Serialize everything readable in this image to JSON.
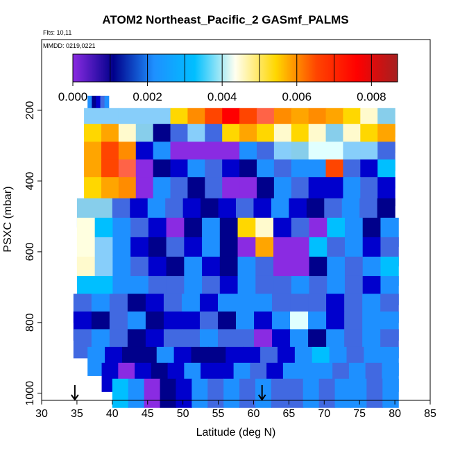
{
  "chart_data": {
    "type": "heatmap",
    "title": "ATOM2 Northeast_Pacific_2 GASmf_PALMS",
    "annotations": [
      "Flts: 10,11",
      "MMDD: 0219,0221"
    ],
    "xlabel": "Latitude (deg N)",
    "ylabel": "PSXC (mbar)",
    "xlim": [
      30,
      85
    ],
    "ylim": [
      1020,
      0
    ],
    "xticks": [
      30,
      35,
      40,
      45,
      50,
      55,
      60,
      65,
      70,
      75,
      80,
      85
    ],
    "yticks": [
      200,
      400,
      600,
      800,
      1000
    ],
    "colorbar": {
      "range": [
        0,
        0.0087
      ],
      "tick_values": [
        0,
        0.002,
        0.004,
        0.006,
        0.008
      ],
      "tick_labels": [
        "0.000",
        "0.002",
        "0.004",
        "0.006",
        "0.008"
      ],
      "stops": [
        "#8a2be2",
        "#00008b",
        "#1e90ff",
        "#00bfff",
        "#fffff0",
        "#ffd700",
        "#ff4500",
        "#ff0000",
        "#a52020"
      ]
    },
    "arrows_latitude": [
      34.7,
      61.2
    ],
    "rows": [
      {
        "p": 200,
        "x0": 36.5,
        "x1": 39.5,
        "colors": [
          "#1e90ff",
          "#00008b",
          "#0000cd",
          "#4169e1",
          "#1e90ff"
        ]
      },
      {
        "p": 235,
        "x0": 36,
        "x1": 80,
        "colors": [
          "#87cefa",
          "#87cefa",
          "#87cefa",
          "#87cefa",
          "#87cefa",
          "#ffd700",
          "#ff8c00",
          "#ff4500",
          "#ff0000",
          "#ff4500",
          "#ff6347",
          "#ff8c00",
          "#ffa500",
          "#ff8c00",
          "#ffa500",
          "#ffd700",
          "#fffacd",
          "#87ceeb"
        ]
      },
      {
        "p": 280,
        "x0": 36,
        "x1": 80,
        "colors": [
          "#ffd700",
          "#ffa500",
          "#fffacd",
          "#87ceeb",
          "#00008b",
          "#4169e1",
          "#87cefa",
          "#4169e1",
          "#ffd700",
          "#ffa500",
          "#ffd700",
          "#fffacd",
          "#ffd700",
          "#fffacd",
          "#87ceeb",
          "#fffacd",
          "#ffd700",
          "#ffa500"
        ]
      },
      {
        "p": 330,
        "x0": 36,
        "x1": 80,
        "colors": [
          "#ffa500",
          "#ff4500",
          "#ff8c00",
          "#0000cd",
          "#1e90ff",
          "#8a2be2",
          "#8a2be2",
          "#8a2be2",
          "#8a2be2",
          "#1e90ff",
          "#4169e1",
          "#87cefa",
          "#87ceeb",
          "#e0ffff",
          "#e0ffff",
          "#87cefa",
          "#87cefa",
          "#4169e1"
        ]
      },
      {
        "p": 380,
        "x0": 36,
        "x1": 80,
        "colors": [
          "#ffa500",
          "#ff4500",
          "#ff6347",
          "#8a2be2",
          "#00008b",
          "#0000cd",
          "#1e90ff",
          "#4169e1",
          "#0000cd",
          "#00008b",
          "#1e90ff",
          "#4169e1",
          "#1e90ff",
          "#1e90ff",
          "#ff4500",
          "#4169e1",
          "#0000cd",
          "#00bfff"
        ]
      },
      {
        "p": 430,
        "x0": 36,
        "x1": 80,
        "colors": [
          "#ffd700",
          "#ffa500",
          "#ff8c00",
          "#8a2be2",
          "#1e90ff",
          "#4169e1",
          "#00008b",
          "#4169e1",
          "#8a2be2",
          "#8a2be2",
          "#00008b",
          "#1e90ff",
          "#4169e1",
          "#0000cd",
          "#0000cd",
          "#1e90ff",
          "#4169e1",
          "#0000cd"
        ]
      },
      {
        "p": 490,
        "x0": 35,
        "x1": 80,
        "colors": [
          "#87ceeb",
          "#87ceeb",
          "#4169e1",
          "#0000cd",
          "#1e90ff",
          "#4169e1",
          "#0000cd",
          "#00008b",
          "#0000cd",
          "#4169e1",
          "#0000cd",
          "#1e90ff",
          "#0000cd",
          "#00008b",
          "#4169e1",
          "#1e90ff",
          "#4169e1",
          "#00008b"
        ]
      },
      {
        "p": 545,
        "x0": 35,
        "x1": 80.5,
        "colors": [
          "#ffffe0",
          "#00bfff",
          "#1e90ff",
          "#4169e1",
          "#0000cd",
          "#8a2be2",
          "#00008b",
          "#1e90ff",
          "#00008b",
          "#ffd700",
          "#fffacd",
          "#0000cd",
          "#4169e1",
          "#8a2be2",
          "#00bfff",
          "#1e90ff",
          "#00008b",
          "#1e90ff"
        ]
      },
      {
        "p": 600,
        "x0": 35,
        "x1": 80.5,
        "colors": [
          "#ffffe0",
          "#87cefa",
          "#1e90ff",
          "#0000cd",
          "#00008b",
          "#4169e1",
          "#0000cd",
          "#1e90ff",
          "#00008b",
          "#8a2be2",
          "#ffa500",
          "#8a2be2",
          "#8a2be2",
          "#00bfff",
          "#4169e1",
          "#1e90ff",
          "#0000cd",
          "#4169e1"
        ]
      },
      {
        "p": 655,
        "x0": 35,
        "x1": 80.5,
        "colors": [
          "#fffacd",
          "#87cefa",
          "#1e90ff",
          "#4169e1",
          "#0000cd",
          "#00008b",
          "#1e90ff",
          "#0000cd",
          "#00008b",
          "#1e90ff",
          "#4169e1",
          "#8a2be2",
          "#8a2be2",
          "#00008b",
          "#1e90ff",
          "#4169e1",
          "#1e90ff",
          "#00bfff"
        ]
      },
      {
        "p": 710,
        "x0": 35,
        "x1": 80.5,
        "colors": [
          "#00bfff",
          "#00bfff",
          "#1e90ff",
          "#1e90ff",
          "#4169e1",
          "#4169e1",
          "#1e90ff",
          "#4169e1",
          "#0000cd",
          "#1e90ff",
          "#4169e1",
          "#4169e1",
          "#1e90ff",
          "#4169e1",
          "#1e90ff",
          "#4169e1",
          "#0000cd",
          "#1e90ff"
        ]
      },
      {
        "p": 760,
        "x0": 34.5,
        "x1": 80.5,
        "colors": [
          "#4169e1",
          "#1e90ff",
          "#4169e1",
          "#00008b",
          "#0000cd",
          "#4169e1",
          "#1e90ff",
          "#0000cd",
          "#1e90ff",
          "#1e90ff",
          "#1e90ff",
          "#4169e1",
          "#4169e1",
          "#4169e1",
          "#0000cd",
          "#4169e1",
          "#1e90ff",
          "#4169e1"
        ]
      },
      {
        "p": 810,
        "x0": 34.5,
        "x1": 80.5,
        "colors": [
          "#0000cd",
          "#00008b",
          "#4169e1",
          "#1e90ff",
          "#00008b",
          "#0000cd",
          "#0000cd",
          "#4169e1",
          "#00008b",
          "#1e90ff",
          "#0000cd",
          "#1e90ff",
          "#e0ffff",
          "#1e90ff",
          "#0000cd",
          "#4169e1",
          "#1e90ff",
          "#1e90ff"
        ]
      },
      {
        "p": 860,
        "x0": 34.5,
        "x1": 80.5,
        "colors": [
          "#4169e1",
          "#1e90ff",
          "#4169e1",
          "#00008b",
          "#0000cd",
          "#4169e1",
          "#4169e1",
          "#1e90ff",
          "#4169e1",
          "#4169e1",
          "#8a2be2",
          "#0000cd",
          "#1e90ff",
          "#00008b",
          "#1e90ff",
          "#4169e1",
          "#1e90ff",
          "#4169e1"
        ]
      },
      {
        "p": 910,
        "x0": 36.5,
        "x1": 80.5,
        "colors": [
          "#1e90ff",
          "#0000cd",
          "#00008b",
          "#00008b",
          "#1e90ff",
          "#0000cd",
          "#00008b",
          "#00008b",
          "#0000cd",
          "#0000cd",
          "#4169e1",
          "#0000cd",
          "#1e90ff",
          "#00bfff",
          "#1e90ff",
          "#4169e1",
          "#1e90ff",
          "#1e90ff"
        ]
      },
      {
        "p": 955,
        "x0": 38.5,
        "x1": 80.5,
        "colors": [
          "#0000cd",
          "#8a2be2",
          "#0000cd",
          "#00008b",
          "#0000cd",
          "#1e90ff",
          "#0000cd",
          "#0000cd",
          "#1e90ff",
          "#4169e1",
          "#0000cd",
          "#1e90ff",
          "#1e90ff",
          "#1e90ff",
          "#4169e1",
          "#1e90ff",
          "#4169e1",
          "#1e90ff"
        ]
      },
      {
        "p": 1000,
        "x0": 40,
        "x1": 80.5,
        "colors": [
          "#00bfff",
          "#1e90ff",
          "#8a2be2",
          "#00008b",
          "#0000cd",
          "#1e90ff",
          "#4169e1",
          "#1e90ff",
          "#4169e1",
          "#1e90ff",
          "#4169e1",
          "#4169e1",
          "#1e90ff",
          "#4169e1",
          "#1e90ff",
          "#1e90ff",
          "#4169e1",
          "#1e90ff"
        ]
      }
    ]
  }
}
